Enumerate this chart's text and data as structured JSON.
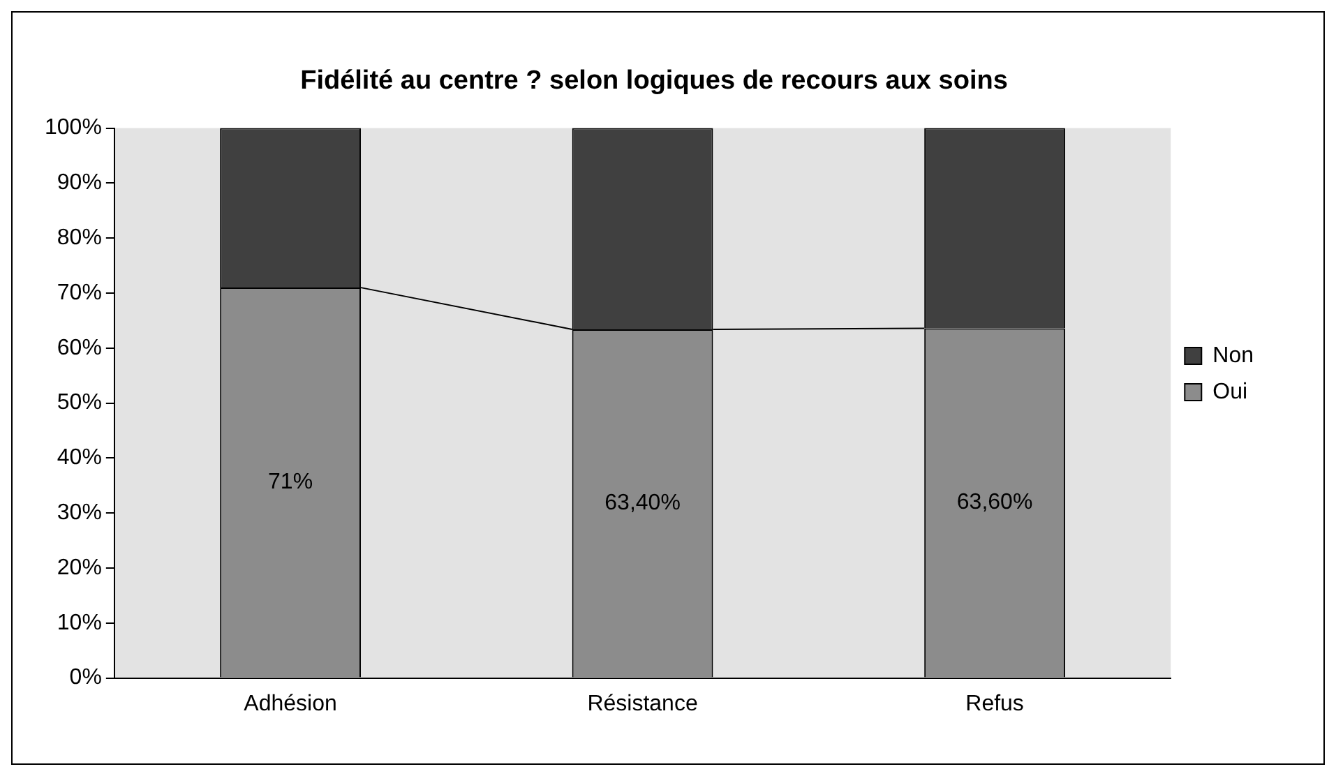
{
  "chart_data": {
    "type": "bar",
    "title": "Fidélité au centre ? selon logiques de recours aux soins",
    "categories": [
      "Adhésion",
      "Résistance",
      "Refus"
    ],
    "stacked": true,
    "series": [
      {
        "name": "Oui",
        "color": "#8c8c8c",
        "values": [
          71,
          63.4,
          63.6
        ],
        "value_labels": [
          "71%",
          "63,40%",
          "63,60%"
        ]
      },
      {
        "name": "Non",
        "color": "#404040",
        "values": [
          29,
          36.6,
          36.4
        ]
      }
    ],
    "ylim": [
      0,
      100
    ],
    "yticks": [
      {
        "value": 0,
        "label": "0%"
      },
      {
        "value": 10,
        "label": "10%"
      },
      {
        "value": 20,
        "label": "20%"
      },
      {
        "value": 30,
        "label": "30%"
      },
      {
        "value": 40,
        "label": "40%"
      },
      {
        "value": 50,
        "label": "50%"
      },
      {
        "value": 60,
        "label": "60%"
      },
      {
        "value": 70,
        "label": "70%"
      },
      {
        "value": 80,
        "label": "80%"
      },
      {
        "value": 90,
        "label": "90%"
      },
      {
        "value": 100,
        "label": "100%"
      }
    ],
    "grid": false,
    "legend": "right"
  }
}
